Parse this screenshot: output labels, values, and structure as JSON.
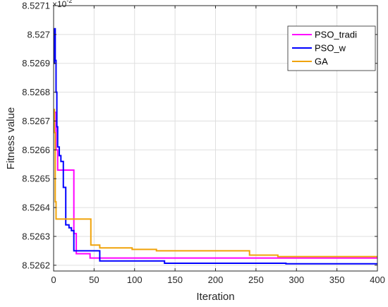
{
  "chart_data": {
    "type": "line",
    "xlabel": "Iteration",
    "ylabel": "Fitness value",
    "exponent_base": "×10",
    "exponent_power": "-2",
    "xlim": [
      0,
      400
    ],
    "ylim": [
      8.52618,
      8.5271
    ],
    "x_ticks": [
      0,
      50,
      100,
      150,
      200,
      250,
      300,
      350,
      400
    ],
    "y_ticks": [
      8.5262,
      8.5263,
      8.5264,
      8.5265,
      8.5266,
      8.5267,
      8.5268,
      8.5269,
      8.527,
      8.5271
    ],
    "y_tick_labels": [
      "8.5262",
      "8.5263",
      "8.5264",
      "8.5265",
      "8.5266",
      "8.5267",
      "8.5268",
      "8.5269",
      "8.527",
      "8.5271"
    ],
    "grid": true,
    "legend_position": "top-right",
    "series": [
      {
        "name": "PSO_tradi",
        "color": "#ff00ff",
        "step": true,
        "points": [
          [
            0,
            8.52673
          ],
          [
            3,
            8.5266
          ],
          [
            5,
            8.52653
          ],
          [
            25,
            8.52653
          ],
          [
            25,
            8.52631
          ],
          [
            28,
            8.52631
          ],
          [
            28,
            8.52624
          ],
          [
            45,
            8.52624
          ],
          [
            45,
            8.526225
          ],
          [
            400,
            8.526225
          ]
        ]
      },
      {
        "name": "PSO_w",
        "color": "#0000ff",
        "step": true,
        "points": [
          [
            0,
            8.5269
          ],
          [
            1,
            8.52702
          ],
          [
            2,
            8.52691
          ],
          [
            3,
            8.5268
          ],
          [
            4,
            8.52668
          ],
          [
            5,
            8.52661
          ],
          [
            7,
            8.52658
          ],
          [
            9,
            8.52656
          ],
          [
            12,
            8.52647
          ],
          [
            15,
            8.52634
          ],
          [
            19,
            8.52633
          ],
          [
            22,
            8.52632
          ],
          [
            25,
            8.52625
          ],
          [
            55,
            8.52625
          ],
          [
            57,
            8.526215
          ],
          [
            135,
            8.526215
          ],
          [
            137,
            8.526207
          ],
          [
            285,
            8.526207
          ],
          [
            287,
            8.526205
          ],
          [
            400,
            8.526205
          ]
        ]
      },
      {
        "name": "GA",
        "color": "#f0a30a",
        "step": true,
        "points": [
          [
            0,
            8.52674
          ],
          [
            1,
            8.52666
          ],
          [
            2,
            8.52642
          ],
          [
            3,
            8.52636
          ],
          [
            45,
            8.52636
          ],
          [
            46,
            8.52627
          ],
          [
            55,
            8.52627
          ],
          [
            57,
            8.52626
          ],
          [
            95,
            8.52626
          ],
          [
            97,
            8.526255
          ],
          [
            125,
            8.526255
          ],
          [
            127,
            8.52625
          ],
          [
            240,
            8.52625
          ],
          [
            242,
            8.526235
          ],
          [
            275,
            8.526235
          ],
          [
            277,
            8.52623
          ],
          [
            400,
            8.52623
          ]
        ]
      }
    ]
  }
}
